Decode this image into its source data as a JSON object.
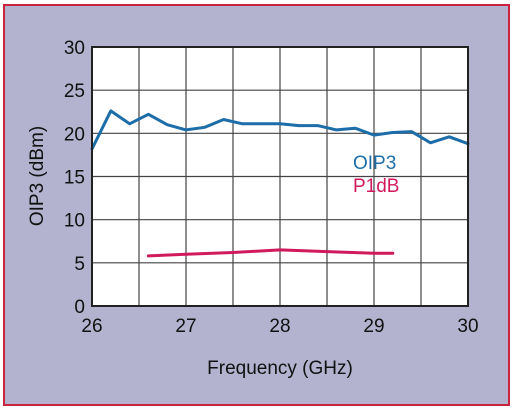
{
  "colors": {
    "frame_background": "#b3b3cf",
    "frame_border": "#c8233f",
    "plot_background": "#ffffff",
    "grid": "#444444"
  },
  "chart_data": {
    "type": "line",
    "xlabel": "Frequency (GHz)",
    "ylabel": "OIP3 (dBm)",
    "xlim": [
      26,
      30
    ],
    "ylim": [
      0,
      30
    ],
    "xticks": [
      26,
      27,
      28,
      29,
      30
    ],
    "yticks": [
      0,
      5,
      10,
      15,
      20,
      25,
      30
    ],
    "xtick_labels": [
      "26",
      "27",
      "28",
      "29",
      "30"
    ],
    "ytick_labels": [
      "0",
      "5",
      "10",
      "15",
      "20",
      "25",
      "30"
    ],
    "grid": true,
    "legend_position": "right-center",
    "series": [
      {
        "name": "OIP3",
        "color": "#1c6da8",
        "x": [
          26.0,
          26.2,
          26.4,
          26.6,
          26.8,
          27.0,
          27.2,
          27.4,
          27.6,
          27.8,
          28.0,
          28.2,
          28.4,
          28.6,
          28.8,
          29.0,
          29.2,
          29.4,
          29.6,
          29.8,
          30.0
        ],
        "y": [
          18.2,
          22.6,
          21.1,
          22.2,
          21.0,
          20.4,
          20.7,
          21.6,
          21.1,
          21.1,
          21.1,
          20.9,
          20.9,
          20.4,
          20.6,
          19.8,
          20.1,
          20.2,
          18.9,
          19.6,
          18.8
        ]
      },
      {
        "name": "P1dB",
        "color": "#d01a5b",
        "x": [
          26.6,
          27.0,
          27.5,
          28.0,
          28.5,
          29.0,
          29.2
        ],
        "y": [
          5.8,
          6.0,
          6.2,
          6.5,
          6.3,
          6.1,
          6.1
        ]
      }
    ]
  }
}
